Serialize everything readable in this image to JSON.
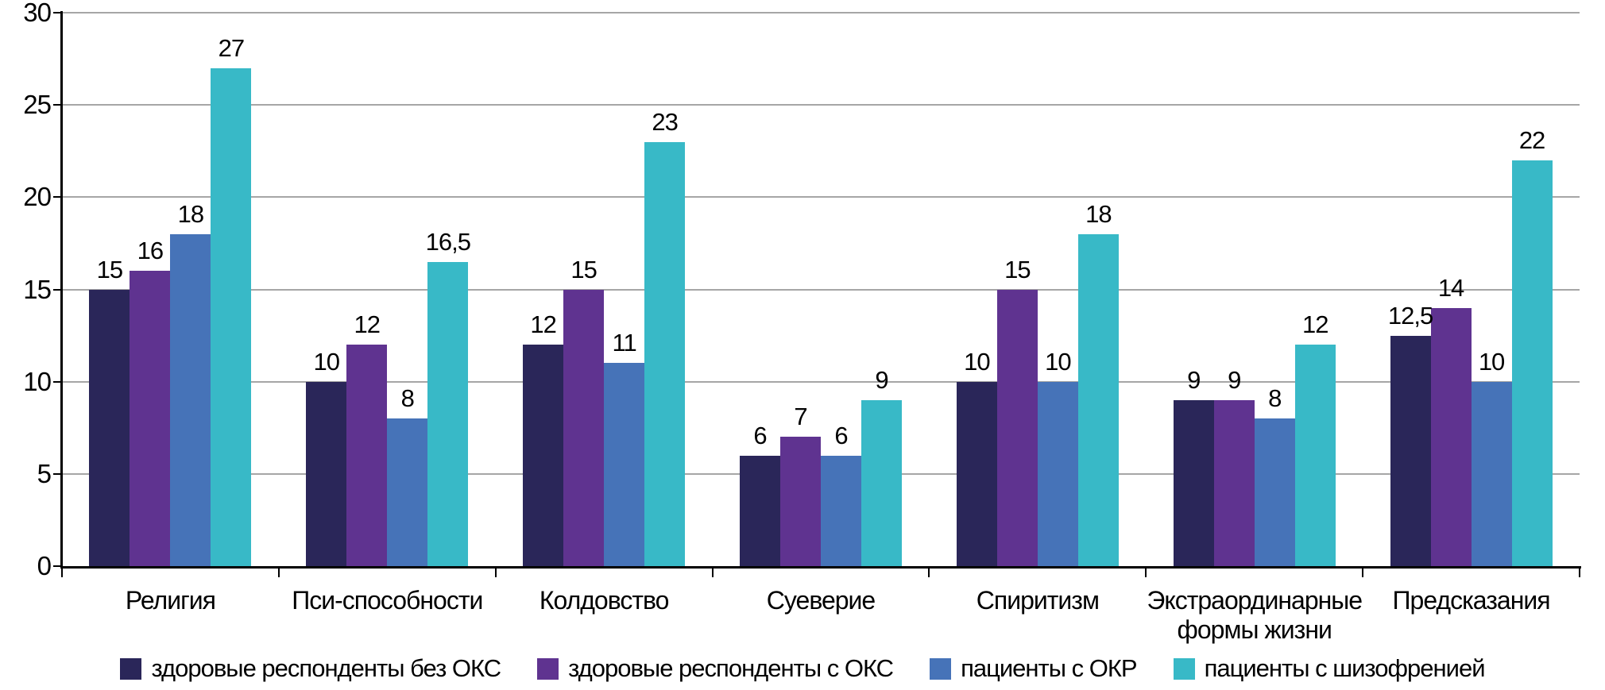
{
  "chart_data": {
    "type": "bar",
    "title": "",
    "xlabel": "",
    "ylabel": "",
    "categories": [
      "Религия",
      "Пси-способности",
      "Колдовство",
      "Суеверие",
      "Спиритизм",
      "Экстраординарные формы жизни",
      "Предсказания"
    ],
    "series": [
      {
        "name": "здоровые респонденты без ОКС",
        "color": "#2a2659",
        "values": [
          15,
          10,
          12,
          6,
          10,
          9,
          12.5
        ]
      },
      {
        "name": "здоровые респонденты с ОКС",
        "color": "#5f3390",
        "values": [
          16,
          12,
          15,
          7,
          15,
          9,
          14
        ]
      },
      {
        "name": "пациенты с ОКР",
        "color": "#4673b8",
        "values": [
          18,
          8,
          11,
          6,
          10,
          8,
          10
        ]
      },
      {
        "name": "пациенты с шизофренией",
        "color": "#38b9c7",
        "values": [
          27,
          16.5,
          23,
          9,
          18,
          12,
          22
        ]
      }
    ],
    "yticks": [
      0,
      5,
      10,
      15,
      20,
      25,
      30
    ],
    "ylim": [
      0,
      30
    ],
    "grid": true,
    "legend_position": "bottom",
    "decimal_separator": ",",
    "value_labels_shown": true,
    "colors": {
      "gridline": "#a6a6a6",
      "axis": "#000000",
      "text": "#000000",
      "background": "#ffffff"
    }
  }
}
